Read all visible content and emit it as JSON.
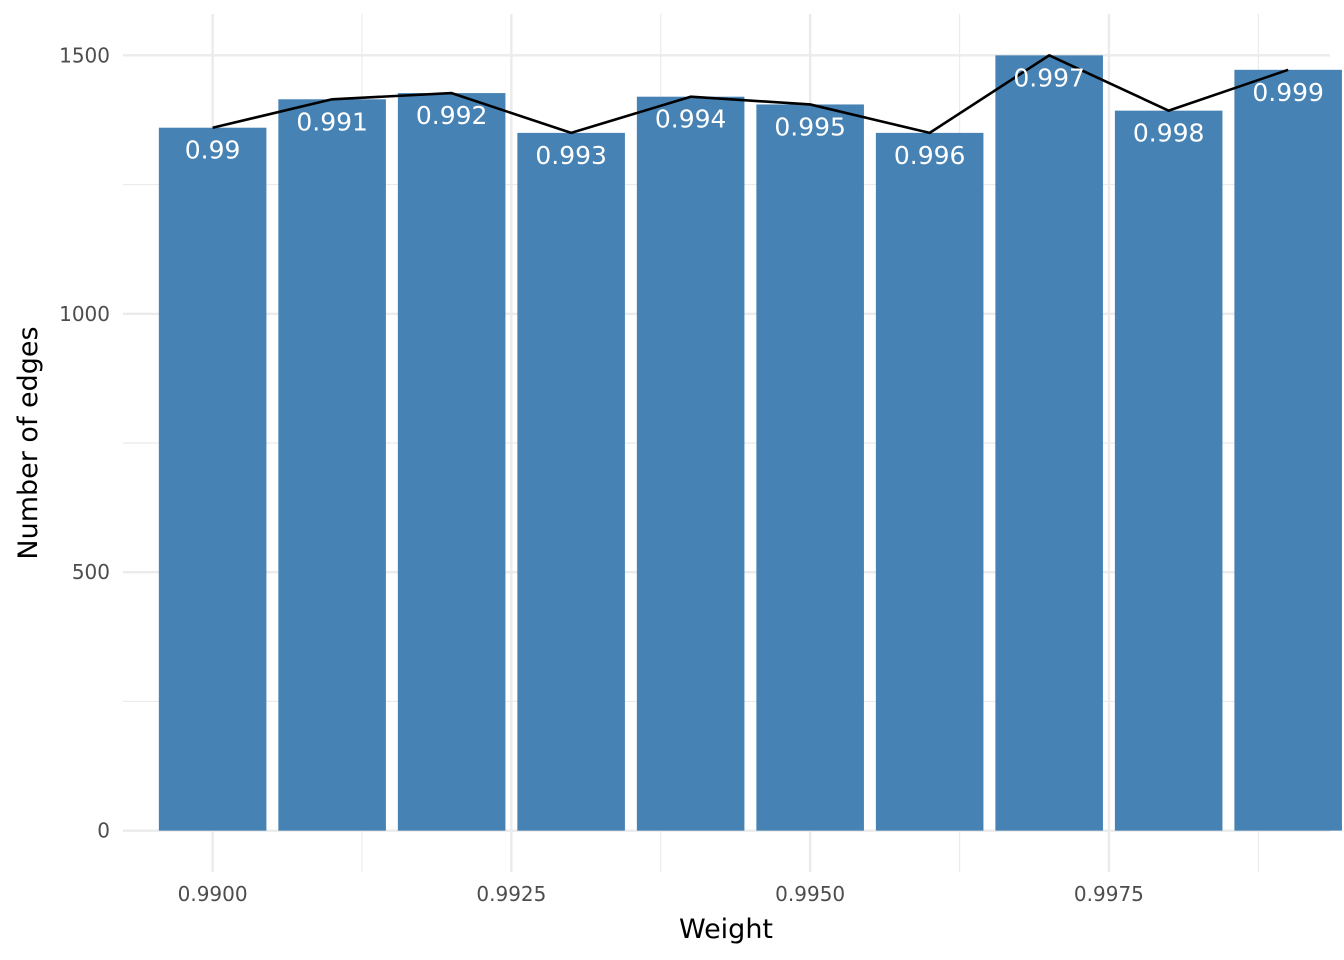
{
  "chart_data": {
    "type": "bar",
    "xlabel": "Weight",
    "ylabel": "Number of edges",
    "x": [
      0.99,
      0.991,
      0.992,
      0.993,
      0.994,
      0.995,
      0.996,
      0.997,
      0.998,
      0.999
    ],
    "values": [
      1360,
      1415,
      1427,
      1350,
      1420,
      1405,
      1350,
      1500,
      1393,
      1472
    ],
    "bar_labels": [
      "0.99",
      "0.991",
      "0.992",
      "0.993",
      "0.994",
      "0.995",
      "0.996",
      "0.997",
      "0.998",
      "0.999"
    ],
    "overlay_line": true,
    "xlim": [
      0.98925,
      0.99935
    ],
    "ylim": [
      -80,
      1580
    ],
    "x_ticks": [
      0.99,
      0.9925,
      0.995,
      0.9975
    ],
    "x_tick_labels": [
      "0.9900",
      "0.9925",
      "0.9950",
      "0.9975"
    ],
    "y_ticks": [
      0,
      500,
      1000,
      1500
    ],
    "y_tick_labels": [
      "0",
      "500",
      "1000",
      "1500"
    ],
    "grid": true,
    "colors": {
      "bar": "#4682B4",
      "line": "#000000",
      "grid": "#ebebeb"
    }
  }
}
